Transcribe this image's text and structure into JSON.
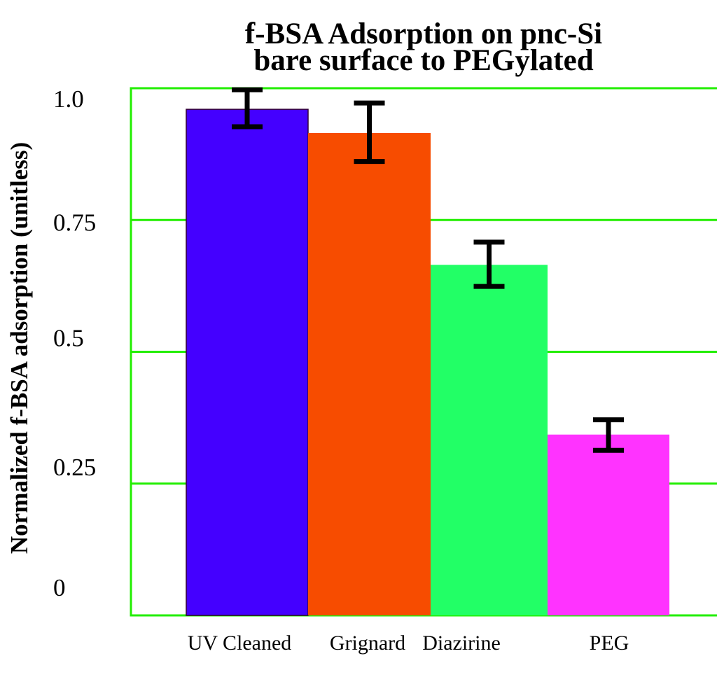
{
  "chart_data": {
    "type": "bar",
    "title": [
      "f-BSA Adsorption on pnc-Si",
      "bare surface to PEGylated"
    ],
    "xlabel": "",
    "ylabel": "Normalized f-BSA adsorption (unitless)",
    "ylim": [
      0,
      1.0
    ],
    "yticks": [
      0,
      0.25,
      0.5,
      0.75,
      1.0
    ],
    "ytick_labels": [
      "0",
      "0.25",
      "0.5",
      "0.75",
      "1.0"
    ],
    "grid": true,
    "legend": "none",
    "categories": [
      "UV Cleaned",
      "Grignard",
      "Diazirine",
      "PEG"
    ],
    "values": [
      0.96,
      0.915,
      0.665,
      0.343
    ],
    "error_low": [
      0.927,
      0.861,
      0.624,
      0.313
    ],
    "error_high": [
      0.997,
      0.972,
      0.708,
      0.371
    ],
    "colors": [
      "#4400ff",
      "#f74c00",
      "#22ff66",
      "#ff33ff"
    ],
    "grid_color": "#22ee00",
    "error_color": "#000000"
  }
}
